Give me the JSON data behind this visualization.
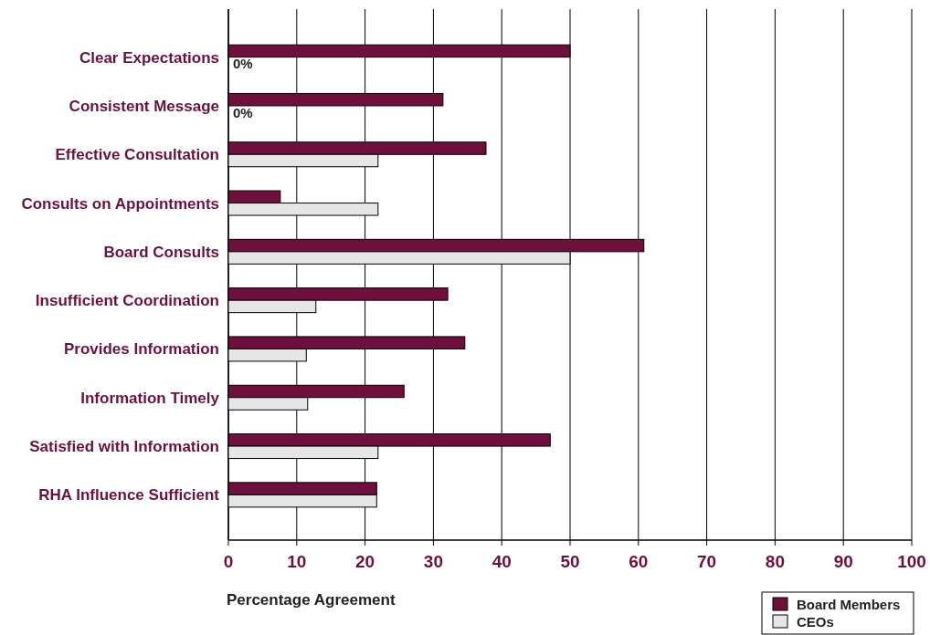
{
  "chart_data": {
    "type": "bar",
    "orientation": "horizontal",
    "xlabel": "Percentage Agreement",
    "categories": [
      "Clear Expectations",
      "Consistent Message",
      "Effective Consultation",
      "Consults on Appointments",
      "Board Consults",
      "Insufficient Coordination",
      "Provides Information",
      "Information Timely",
      "Satisfied with Information",
      "RHA Influence Sufficient"
    ],
    "series": [
      {
        "name": "Board Members",
        "color": "#6e0f3c",
        "values": [
          50,
          31.4,
          37.7,
          7.6,
          60.8,
          32.1,
          34.6,
          25.7,
          47.1,
          21.7
        ]
      },
      {
        "name": "CEOs",
        "color": "#e6e6e6",
        "values": [
          0,
          0,
          21.9,
          21.9,
          50,
          12.8,
          11.4,
          11.6,
          21.9,
          21.7
        ],
        "value_labels": [
          "0%",
          "0%",
          null,
          null,
          null,
          null,
          null,
          null,
          null,
          null
        ]
      }
    ],
    "xlim": [
      0,
      100
    ],
    "xticks": [
      0,
      10,
      20,
      30,
      40,
      50,
      60,
      70,
      80,
      90,
      100
    ],
    "grid": "x",
    "legend": "bottom right"
  }
}
